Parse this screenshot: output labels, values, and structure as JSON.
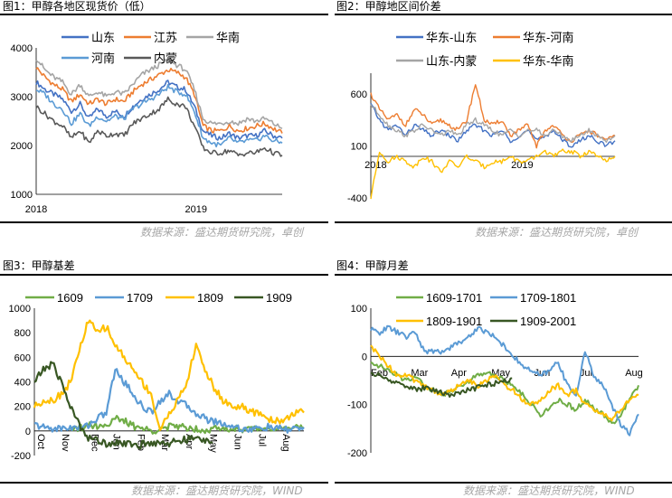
{
  "panels": {
    "p1": {
      "title": "图1：甲醇各地区现货价（低）",
      "source": "数据来源：盛达期货研究院，卓创"
    },
    "p2": {
      "title": "图2：甲醇地区间价差",
      "source": "数据来源：盛达期货研究院，卓创"
    },
    "p3": {
      "title": "图3：甲醇基差",
      "source": "数据来源：盛达期货研究院，WIND"
    },
    "p4": {
      "title": "图4：甲醇月差",
      "source": "数据来源：盛达期货研究院，WIND"
    }
  },
  "chart_data": [
    {
      "id": "c1",
      "type": "line",
      "title": "",
      "ylim": [
        1000,
        4000
      ],
      "yticks": [
        "1000",
        "2000",
        "3000",
        "4000"
      ],
      "xticks": [
        "2018",
        "2019"
      ],
      "grid": false,
      "legend": "top",
      "series": [
        {
          "name": "山东",
          "color": "#4472c4",
          "values": [
            3300,
            3150,
            3050,
            2950,
            2700,
            2850,
            2550,
            2750,
            2600,
            2700,
            2600,
            2800,
            2950,
            3050,
            3150,
            3300,
            3200,
            3150,
            2800,
            2300,
            2200,
            2150,
            2250,
            2150,
            2200,
            2200,
            2300,
            2200,
            2150
          ]
        },
        {
          "name": "江苏",
          "color": "#ed7d31",
          "values": [
            3600,
            3400,
            3250,
            3150,
            2900,
            3050,
            2850,
            2950,
            2850,
            2950,
            2900,
            3100,
            3250,
            3350,
            3450,
            3550,
            3500,
            3400,
            3050,
            2400,
            2300,
            2300,
            2400,
            2300,
            2350,
            2400,
            2450,
            2350,
            2250
          ]
        },
        {
          "name": "华南",
          "color": "#a5a5a5",
          "values": [
            3800,
            3550,
            3400,
            3300,
            3050,
            3250,
            3000,
            3100,
            3000,
            3100,
            3050,
            3250,
            3450,
            3550,
            3650,
            3750,
            3650,
            3550,
            3150,
            2550,
            2450,
            2450,
            2500,
            2450,
            2550,
            2500,
            2550,
            2450,
            2350
          ]
        },
        {
          "name": "河南",
          "color": "#5b9bd5",
          "values": [
            3150,
            3050,
            2850,
            2750,
            2450,
            2650,
            2400,
            2600,
            2500,
            2600,
            2550,
            2750,
            2850,
            2950,
            3050,
            3200,
            3100,
            3050,
            2700,
            2150,
            2050,
            2000,
            2150,
            2050,
            2100,
            2100,
            2200,
            2100,
            2050
          ]
        },
        {
          "name": "内蒙",
          "color": "#595959",
          "values": [
            2800,
            2650,
            2500,
            2400,
            2150,
            2300,
            2050,
            2300,
            2200,
            2250,
            2200,
            2450,
            2550,
            2650,
            2750,
            2950,
            2850,
            2800,
            2400,
            1950,
            1850,
            1850,
            1900,
            1800,
            1850,
            1850,
            1950,
            1850,
            1800
          ]
        }
      ]
    },
    {
      "id": "c2",
      "type": "line",
      "title": "",
      "ylim": [
        -400,
        800
      ],
      "yticks": [
        "-400",
        "100",
        "600"
      ],
      "xticks": [
        "2018",
        "2019"
      ],
      "grid": false,
      "legend": "top",
      "series": [
        {
          "name": "华东-山东",
          "color": "#4472c4",
          "values": [
            500,
            350,
            250,
            300,
            200,
            300,
            250,
            200,
            250,
            200,
            150,
            250,
            300,
            250,
            200,
            250,
            150,
            200,
            250,
            150,
            200,
            250,
            150,
            100,
            150,
            200,
            150,
            100,
            150
          ]
        },
        {
          "name": "华东-河南",
          "color": "#ed7d31",
          "values": [
            600,
            450,
            350,
            400,
            300,
            450,
            400,
            300,
            350,
            300,
            250,
            350,
            700,
            350,
            300,
            350,
            200,
            250,
            300,
            100,
            250,
            300,
            200,
            150,
            200,
            250,
            200,
            150,
            200
          ]
        },
        {
          "name": "山东-内蒙",
          "color": "#a5a5a5",
          "values": [
            500,
            400,
            300,
            250,
            200,
            250,
            300,
            250,
            200,
            250,
            200,
            300,
            350,
            300,
            250,
            200,
            250,
            200,
            250,
            250,
            200,
            250,
            200,
            150,
            200,
            250,
            200,
            150,
            200
          ]
        },
        {
          "name": "华东-华南",
          "color": "#ffc000",
          "values": [
            -400,
            50,
            -50,
            0,
            -50,
            -100,
            0,
            -50,
            -150,
            -50,
            -100,
            0,
            -50,
            -100,
            -50,
            -50,
            0,
            -50,
            -50,
            0,
            50,
            0,
            50,
            50,
            0,
            50,
            0,
            -50,
            0
          ]
        }
      ]
    },
    {
      "id": "c3",
      "type": "line",
      "title": "",
      "ylim": [
        -200,
        1000
      ],
      "yticks": [
        "-200",
        "0",
        "200",
        "400",
        "600",
        "800",
        "1000"
      ],
      "xticks": [
        "Oct",
        "Nov",
        "Dec",
        "Jan",
        "Feb",
        "Mar",
        "Apr",
        "May",
        "Jun",
        "Jul",
        "Aug"
      ],
      "grid": false,
      "legend": "top",
      "series": [
        {
          "name": "1609",
          "color": "#70ad47",
          "values": [
            null,
            null,
            null,
            null,
            0,
            20,
            60,
            40,
            50,
            100,
            80,
            40,
            20,
            0,
            20,
            30,
            40,
            30,
            20,
            10,
            20,
            10,
            20,
            20,
            10,
            20,
            30,
            20,
            10,
            20,
            30
          ]
        },
        {
          "name": "1709",
          "color": "#5b9bd5",
          "values": [
            50,
            30,
            20,
            20,
            30,
            20,
            50,
            100,
            150,
            500,
            400,
            300,
            200,
            150,
            250,
            300,
            250,
            200,
            150,
            100,
            80,
            60,
            40,
            20,
            10,
            20,
            30,
            20,
            10,
            20,
            30
          ]
        },
        {
          "name": "1809",
          "color": "#ffc000",
          "values": [
            200,
            250,
            250,
            300,
            400,
            650,
            900,
            800,
            850,
            700,
            600,
            500,
            400,
            300,
            0,
            150,
            250,
            400,
            700,
            500,
            350,
            250,
            200,
            200,
            150,
            150,
            100,
            80,
            100,
            150,
            150
          ]
        },
        {
          "name": "1909",
          "color": "#385723",
          "values": [
            400,
            500,
            550,
            400,
            200,
            50,
            -50,
            -80,
            -100,
            -90,
            -100,
            -120,
            -110,
            -100,
            -90,
            -100,
            -80,
            -70,
            -60,
            -80,
            -70,
            null,
            null,
            null,
            null,
            null,
            null,
            null,
            null,
            null,
            null
          ]
        }
      ]
    },
    {
      "id": "c4",
      "type": "line",
      "title": "",
      "ylim": [
        -200,
        100
      ],
      "yticks": [
        "-200",
        "-100",
        "0",
        "100"
      ],
      "xticks": [
        "Feb",
        "Mar",
        "Apr",
        "May",
        "Jun",
        "Jul",
        "Aug"
      ],
      "grid": false,
      "legend": "top",
      "series": [
        {
          "name": "1609-1701",
          "color": "#70ad47",
          "values": [
            -10,
            -20,
            -30,
            -40,
            -50,
            -40,
            -60,
            -70,
            -80,
            -70,
            -60,
            -50,
            -40,
            -30,
            -40,
            -50,
            -60,
            -80,
            -100,
            -120,
            -110,
            -90,
            -100,
            -110,
            -90,
            -110,
            -120,
            -140,
            -120,
            -90,
            -60
          ]
        },
        {
          "name": "1709-1801",
          "color": "#5b9bd5",
          "values": [
            55,
            50,
            60,
            50,
            40,
            50,
            10,
            10,
            10,
            20,
            30,
            40,
            60,
            50,
            40,
            20,
            0,
            -20,
            -30,
            -40,
            -30,
            -10,
            -60,
            -80,
            10,
            -40,
            -60,
            -100,
            -140,
            -160,
            -120
          ]
        },
        {
          "name": "1809-1901",
          "color": "#ffc000",
          "values": [
            20,
            0,
            -20,
            -40,
            -40,
            -50,
            -60,
            -70,
            -80,
            -70,
            -60,
            -50,
            -60,
            -50,
            -40,
            -60,
            -70,
            -90,
            -100,
            -90,
            -70,
            -60,
            -80,
            -70,
            -100,
            -110,
            -120,
            -130,
            -110,
            -90,
            -80
          ]
        },
        {
          "name": "1909-2001",
          "color": "#385723",
          "values": [
            -35,
            -40,
            -50,
            -55,
            -60,
            -70,
            -65,
            -70,
            -75,
            -80,
            -75,
            -70,
            -65,
            -60,
            -55,
            -50,
            -45,
            null,
            null,
            null,
            null,
            null,
            null,
            null,
            null,
            null,
            null,
            null,
            null,
            null,
            null
          ]
        }
      ]
    }
  ]
}
